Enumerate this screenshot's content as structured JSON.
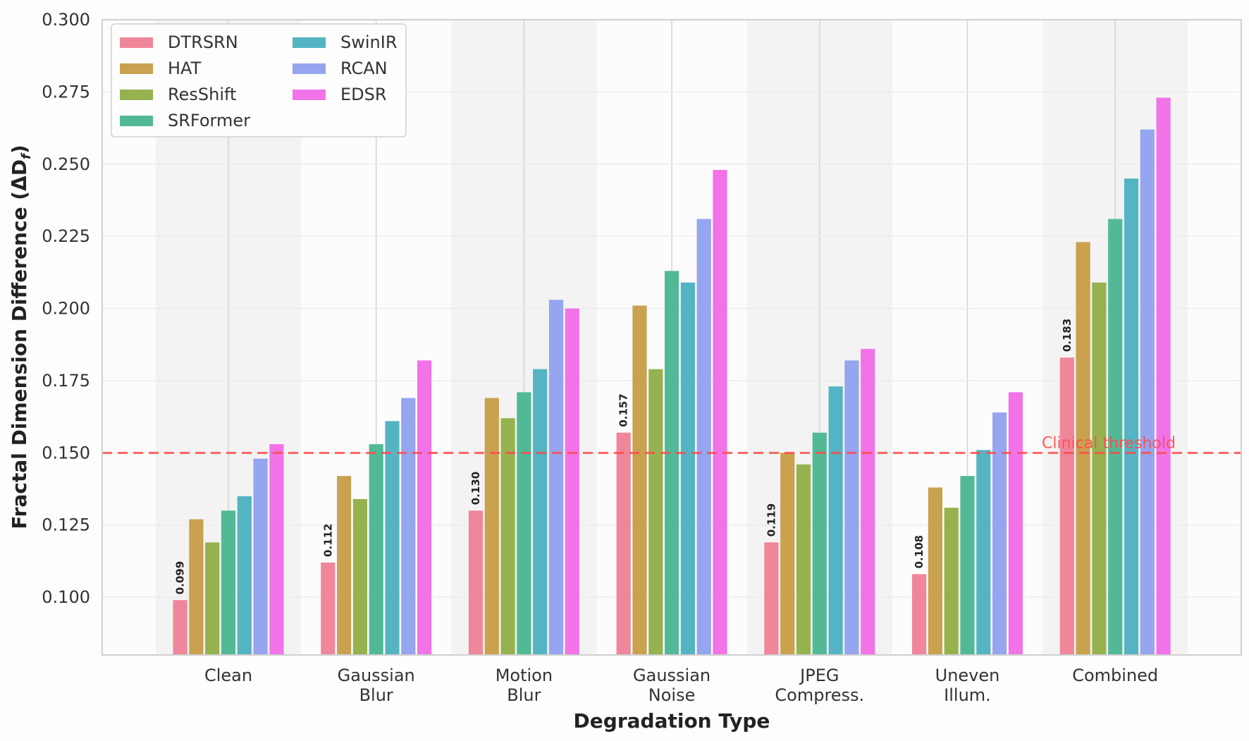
{
  "chart_data": {
    "type": "bar",
    "title": "",
    "xlabel": "Degradation Type",
    "ylabel": "Fractal Dimension Difference (ΔD_f)",
    "ylabel_main": "Fractal Dimension Difference (ΔD",
    "ylabel_sub": "f",
    "ylabel_close": ")",
    "ylim": [
      0.08,
      0.3
    ],
    "yticks": [
      "0.100",
      "0.125",
      "0.150",
      "0.175",
      "0.200",
      "0.225",
      "0.250",
      "0.275",
      "0.300"
    ],
    "categories": [
      [
        "Clean"
      ],
      [
        "Gaussian",
        "Blur"
      ],
      [
        "Motion",
        "Blur"
      ],
      [
        "Gaussian",
        "Noise"
      ],
      [
        "JPEG",
        "Compress."
      ],
      [
        "Uneven",
        "Illum."
      ],
      [
        "Combined"
      ]
    ],
    "series": [
      {
        "name": "DTRSRN",
        "color": "#f0869a",
        "values": [
          0.099,
          0.112,
          0.13,
          0.157,
          0.119,
          0.108,
          0.183
        ]
      },
      {
        "name": "HAT",
        "color": "#c9a14f",
        "values": [
          0.127,
          0.142,
          0.169,
          0.201,
          0.15,
          0.138,
          0.223
        ]
      },
      {
        "name": "ResShift",
        "color": "#96b24f",
        "values": [
          0.119,
          0.134,
          0.162,
          0.179,
          0.146,
          0.131,
          0.209
        ]
      },
      {
        "name": "SRFormer",
        "color": "#52b997",
        "values": [
          0.13,
          0.153,
          0.171,
          0.213,
          0.157,
          0.142,
          0.231
        ]
      },
      {
        "name": "SwinIR",
        "color": "#55b4c3",
        "values": [
          0.135,
          0.161,
          0.179,
          0.209,
          0.173,
          0.151,
          0.245
        ]
      },
      {
        "name": "RCAN",
        "color": "#95a5ef",
        "values": [
          0.148,
          0.169,
          0.203,
          0.231,
          0.182,
          0.164,
          0.262
        ]
      },
      {
        "name": "EDSR",
        "color": "#f273e8",
        "values": [
          0.153,
          0.182,
          0.2,
          0.248,
          0.186,
          0.171,
          0.273
        ]
      }
    ],
    "value_labels": [
      "0.099",
      "0.112",
      "0.130",
      "0.157",
      "0.119",
      "0.108",
      "0.183"
    ],
    "threshold": {
      "value": 0.15,
      "label": "Clinical threshold",
      "color": "#ff4b4b"
    },
    "legend_position": "top-left",
    "grid": true
  }
}
